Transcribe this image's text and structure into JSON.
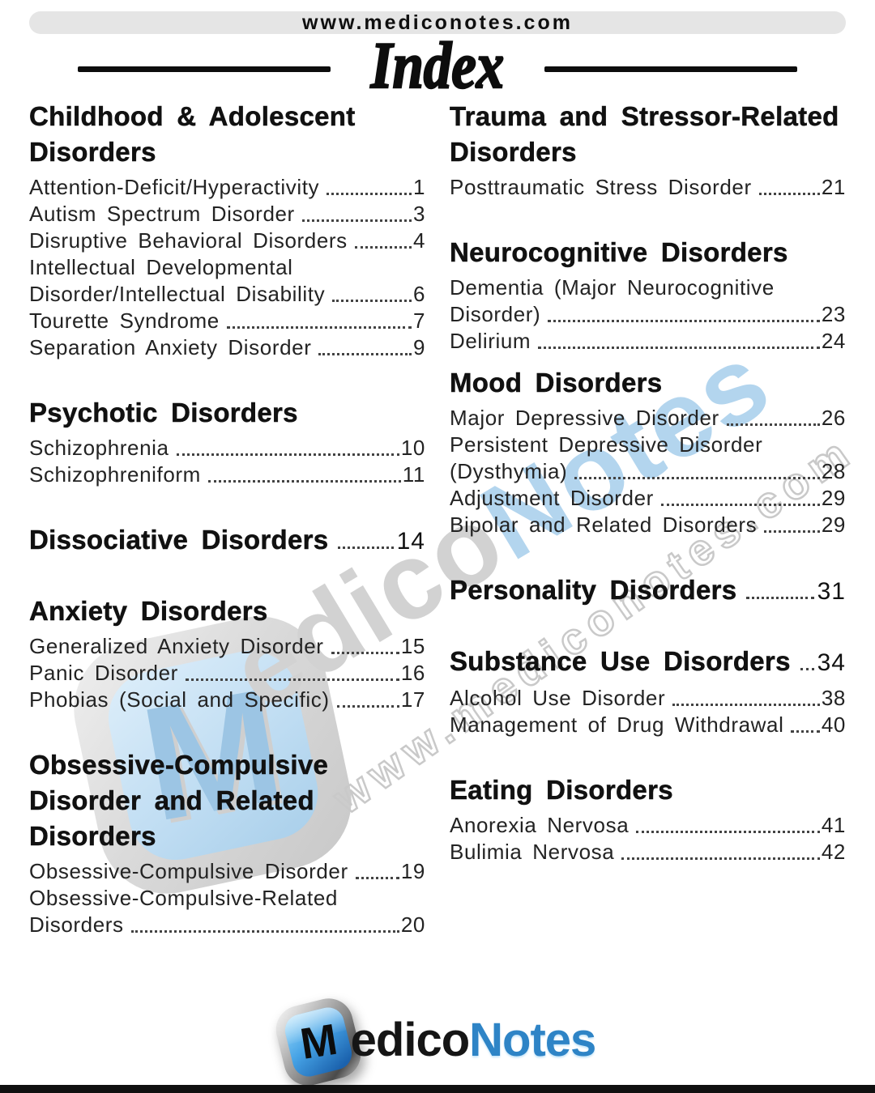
{
  "header": {
    "website": "www.mediconotes.com",
    "title": "Index"
  },
  "columns": {
    "left": [
      {
        "title": "Childhood & Adolescent Disorders",
        "items": [
          {
            "text": "Attention-Deficit/Hyperactivity",
            "page": "1"
          },
          {
            "text": "Autism Spectrum Disorder",
            "page": "3"
          },
          {
            "text": "Disruptive Behavioral Disorders",
            "page": "4"
          },
          {
            "text": "Intellectual Developmental",
            "page": null
          },
          {
            "text": "Disorder/Intellectual Disability",
            "page": "6"
          },
          {
            "text": "Tourette Syndrome",
            "page": "7"
          },
          {
            "text": "Separation Anxiety Disorder",
            "page": "9"
          }
        ]
      },
      {
        "title": "Psychotic Disorders",
        "items": [
          {
            "text": "Schizophrenia",
            "page": "10"
          },
          {
            "text": "Schizophreniform",
            "page": "11"
          }
        ]
      },
      {
        "title": "Dissociative Disorders",
        "page": "14",
        "items": []
      },
      {
        "title": "Anxiety Disorders",
        "items": [
          {
            "text": "Generalized Anxiety Disorder",
            "page": "15"
          },
          {
            "text": "Panic Disorder",
            "page": "16"
          },
          {
            "text": "Phobias (Social and Specific)",
            "page": "17"
          }
        ]
      },
      {
        "title": "Obsessive-Compulsive Disorder and Related Disorders",
        "items": [
          {
            "text": "Obsessive-Compulsive Disorder",
            "page": "19"
          },
          {
            "text": "Obsessive-Compulsive-Related",
            "page": null
          },
          {
            "text": "Disorders",
            "page": "20"
          }
        ]
      }
    ],
    "right": [
      {
        "title": "Trauma and Stressor-Related Disorders",
        "items": [
          {
            "text": "Posttraumatic Stress Disorder",
            "page": "21"
          }
        ]
      },
      {
        "title": "Neurocognitive Disorders",
        "items": [
          {
            "text": "Dementia (Major Neurocognitive",
            "page": null
          },
          {
            "text": "Disorder)",
            "page": "23"
          },
          {
            "text": "Delirium",
            "page": "24"
          }
        ]
      },
      {
        "title": "Mood Disorders",
        "items": [
          {
            "text": "Major Depressive Disorder",
            "page": "26"
          },
          {
            "text": "Persistent Depressive Disorder",
            "page": null
          },
          {
            "text": "(Dysthymia)",
            "page": "28"
          },
          {
            "text": "Adjustment Disorder",
            "page": "29"
          },
          {
            "text": "Bipolar and Related Disorders",
            "page": "29"
          }
        ]
      },
      {
        "title": "Personality Disorders",
        "page": "31",
        "items": []
      },
      {
        "title": "Substance Use Disorders",
        "page": "34",
        "items": [
          {
            "text": "Alcohol Use Disorder",
            "page": "38"
          },
          {
            "text": "Management of Drug Withdrawal",
            "page": "40"
          }
        ]
      },
      {
        "title": "Eating Disorders",
        "items": [
          {
            "text": "Anorexia Nervosa",
            "page": "41"
          },
          {
            "text": "Bulimia Nervosa",
            "page": "42"
          }
        ]
      }
    ]
  },
  "watermark": {
    "badge_m": "M",
    "brand_gray": "edico",
    "brand_blue": "Notes",
    "url": "www.mediconotes.com"
  },
  "footer": {
    "logo_m": "M",
    "logo_edico": "edico",
    "logo_notes": "Notes"
  },
  "colors": {
    "brand_blue": "#2e84c6",
    "watermark_blue": "#b3d5ee",
    "watermark_gray": "#d2d2d2",
    "topbar_gray": "#e5e5e5",
    "bottom_bar": "#101010",
    "text": "#1a1a1a"
  }
}
